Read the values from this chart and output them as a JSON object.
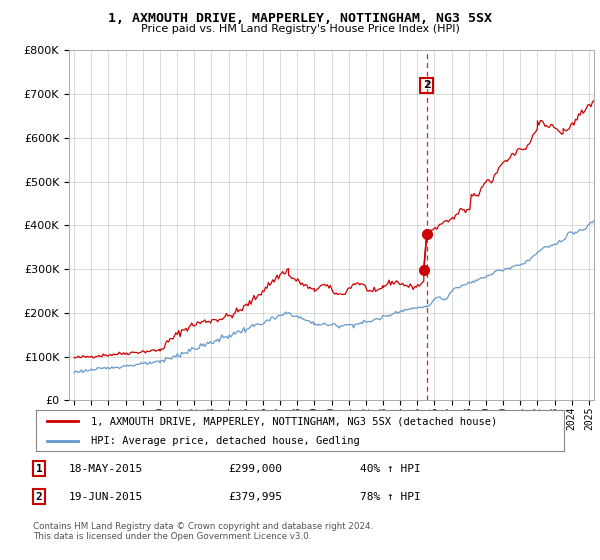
{
  "title": "1, AXMOUTH DRIVE, MAPPERLEY, NOTTINGHAM, NG3 5SX",
  "subtitle": "Price paid vs. HM Land Registry's House Price Index (HPI)",
  "legend_line1": "1, AXMOUTH DRIVE, MAPPERLEY, NOTTINGHAM, NG3 5SX (detached house)",
  "legend_line2": "HPI: Average price, detached house, Gedling",
  "annotation1_date": "18-MAY-2015",
  "annotation1_price": "£299,000",
  "annotation1_hpi": "40% ↑ HPI",
  "annotation2_date": "19-JUN-2015",
  "annotation2_price": "£379,995",
  "annotation2_hpi": "78% ↑ HPI",
  "vline_x": 2015.55,
  "marker1_y": 299000,
  "marker2_y": 379995,
  "ylim": [
    0,
    800000
  ],
  "xlim": [
    1994.7,
    2025.3
  ],
  "red_color": "#cc0000",
  "blue_color": "#6699cc",
  "background_color": "#ffffff",
  "grid_color": "#cccccc",
  "footer": "Contains HM Land Registry data © Crown copyright and database right 2024.\nThis data is licensed under the Open Government Licence v3.0."
}
